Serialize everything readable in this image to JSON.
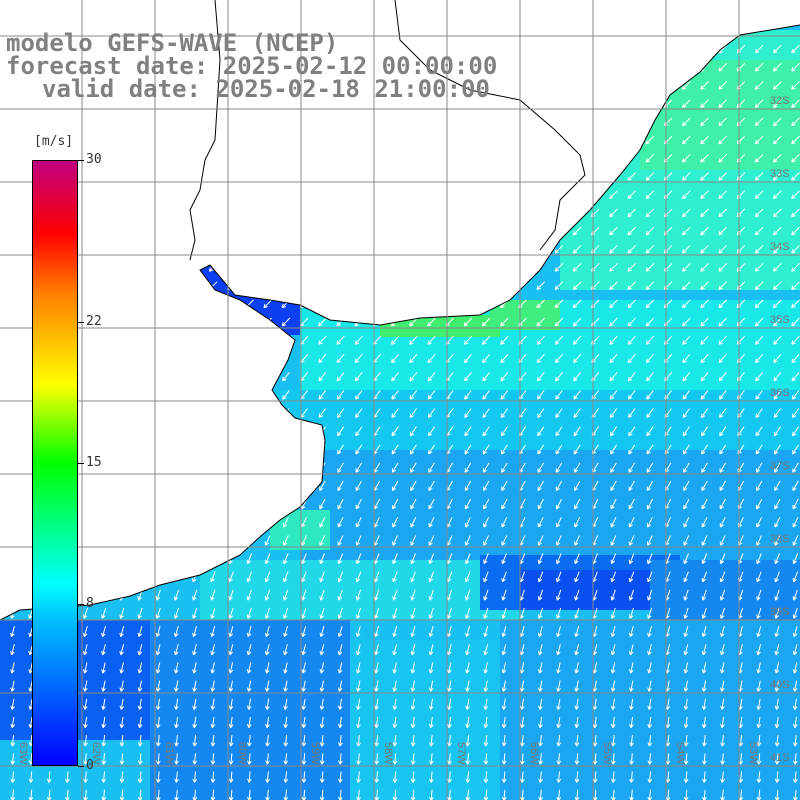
{
  "title": {
    "line1": "modelo GEFS-WAVE (NCEP)",
    "line2": "forecast date: 2025-02-12 00:00:00",
    "line3": "valid date: 2025-02-18 21:00:00"
  },
  "colorbar": {
    "unit": "[m/s]",
    "ticks": [
      "30",
      "22",
      "15",
      "8",
      "0"
    ],
    "tick_values": [
      30,
      22,
      15,
      8,
      0
    ],
    "colors": [
      "#0000ff",
      "#00c8ff",
      "#00ffff",
      "#00ff00",
      "#ffff00",
      "#ff8000",
      "#ff0000",
      "#c00080"
    ]
  },
  "map": {
    "lat_labels": [
      "32S",
      "33S",
      "34S",
      "35S",
      "36S",
      "37S",
      "38S",
      "39S",
      "40S",
      "41S"
    ],
    "lon_labels": [
      "63W",
      "62W",
      "61W",
      "60W",
      "59W",
      "58W",
      "57W",
      "56W",
      "55W",
      "54W",
      "53W",
      "52W",
      "51W"
    ],
    "land_color": "#ffffff",
    "grid_color": "#888888",
    "arrow_color": "#ffffff",
    "wind_direction": "from north-east"
  }
}
